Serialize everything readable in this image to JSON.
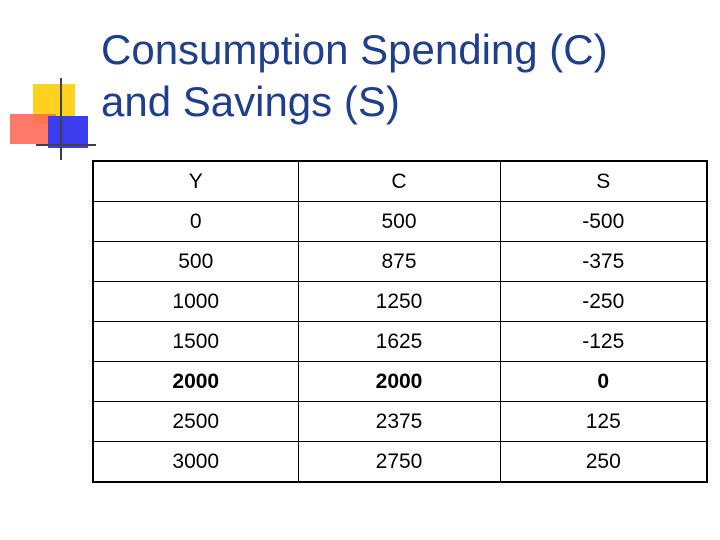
{
  "slide": {
    "title_line1": "Consumption Spending (C)",
    "title_line2": "and Savings (S)"
  },
  "table": {
    "headers": [
      "Y",
      "C",
      "S"
    ],
    "rows": [
      {
        "y": "0",
        "c": "500",
        "s": "-500",
        "bold": false
      },
      {
        "y": "500",
        "c": "875",
        "s": "-375",
        "bold": false
      },
      {
        "y": "1000",
        "c": "1250",
        "s": "-250",
        "bold": false
      },
      {
        "y": "1500",
        "c": "1625",
        "s": "-125",
        "bold": false
      },
      {
        "y": "2000",
        "c": "2000",
        "s": "0",
        "bold": true
      },
      {
        "y": "2500",
        "c": "2375",
        "s": "125",
        "bold": false
      },
      {
        "y": "3000",
        "c": "2750",
        "s": "250",
        "bold": false
      }
    ]
  },
  "colors": {
    "title": "#1f3f8c",
    "accent_yellow": "#ffd21f",
    "accent_red": "#ff6a5a",
    "accent_blue": "#3d3df0"
  }
}
